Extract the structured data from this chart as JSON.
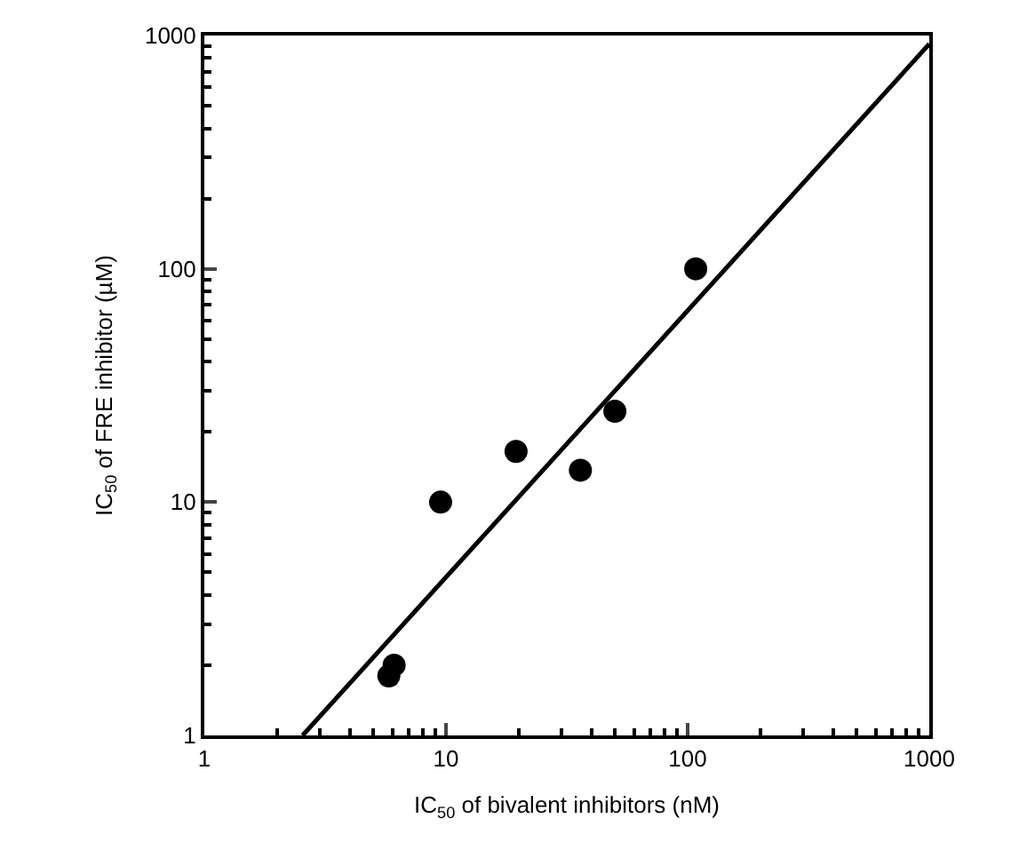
{
  "chart_data": {
    "type": "scatter",
    "xlabel": "IC$_{50}$ of bivalent inhibitors (nM)",
    "ylabel": "IC$_{50}$ of FRE inhibitor (µM)",
    "log": "xy",
    "xlim": [
      1,
      1000
    ],
    "ylim": [
      1,
      1000
    ],
    "xticks": [
      1,
      10,
      100,
      1000
    ],
    "yticks": [
      1,
      10,
      100,
      1000
    ],
    "marker": "circle",
    "series": [
      {
        "color": "#000000",
        "x": [
          5.8,
          6.1,
          9.5,
          19.5,
          36,
          50,
          108
        ],
        "values": [
          1.8,
          2.0,
          10,
          16.5,
          13.7,
          24.5,
          100
        ]
      },
      {
        "type": "line",
        "color": "#000000",
        "marker": "none",
        "line_style": "solid",
        "x": [
          2.55,
          1000
        ],
        "values": [
          1,
          920
        ]
      }
    ]
  }
}
